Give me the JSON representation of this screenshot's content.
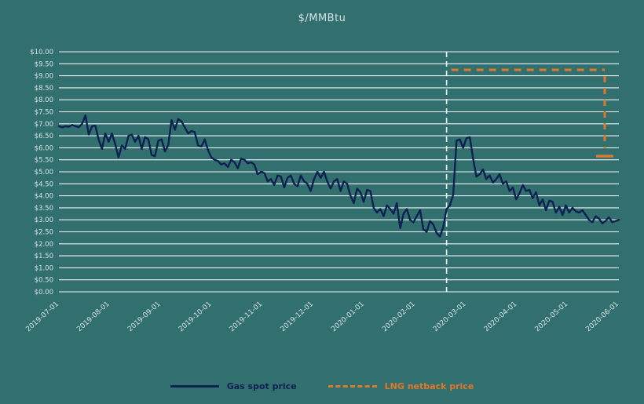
{
  "colors": {
    "background": "#327070",
    "grid": "#eef4f4",
    "text": "#d7e2e2",
    "event_line": "#f2f6f6",
    "spot_line": "#0d2150",
    "netback_line": "#e0782a"
  },
  "chart_data": {
    "type": "line",
    "title": "$/MMBtu",
    "xlabel": "",
    "ylabel": "",
    "ylim": [
      0,
      10
    ],
    "ytick_step": 0.5,
    "ytick_prefix": "$",
    "grid": "horizontal",
    "legend_position": "bottom-center",
    "categories": [
      "2019-07-01",
      "2019-08-01",
      "2019-09-01",
      "2019-10-01",
      "2019-11-01",
      "2019-12-01",
      "2020-01-01",
      "2020-02-01",
      "2020-03-01",
      "2020-04-01",
      "2020-05-01",
      "2020-06-01"
    ],
    "event_index": 117,
    "event_line_note": "vertical white dashed marker near 2020-03",
    "series": [
      {
        "name": "Gas spot price",
        "type": "line",
        "color": "#0d2150",
        "values": [
          6.9,
          6.85,
          6.9,
          6.88,
          6.95,
          6.9,
          6.86,
          7.0,
          7.35,
          6.55,
          6.9,
          6.92,
          6.35,
          5.95,
          6.6,
          6.25,
          6.6,
          6.15,
          5.6,
          6.1,
          5.95,
          6.5,
          6.55,
          6.25,
          6.5,
          5.95,
          6.45,
          6.35,
          5.7,
          5.65,
          6.3,
          6.35,
          5.85,
          6.1,
          7.15,
          6.75,
          7.2,
          7.1,
          6.85,
          6.6,
          6.7,
          6.65,
          6.1,
          6.05,
          6.35,
          5.9,
          5.6,
          5.5,
          5.45,
          5.3,
          5.35,
          5.2,
          5.5,
          5.4,
          5.15,
          5.55,
          5.5,
          5.35,
          5.4,
          5.3,
          4.9,
          5.0,
          4.95,
          4.6,
          4.7,
          4.45,
          4.85,
          4.8,
          4.35,
          4.75,
          4.85,
          4.5,
          4.4,
          4.85,
          4.6,
          4.5,
          4.2,
          4.7,
          5.0,
          4.75,
          5.0,
          4.6,
          4.3,
          4.6,
          4.7,
          4.2,
          4.6,
          4.5,
          4.0,
          3.7,
          4.3,
          4.15,
          3.75,
          4.25,
          4.2,
          3.5,
          3.3,
          3.45,
          3.15,
          3.6,
          3.45,
          3.25,
          3.7,
          2.65,
          3.25,
          3.45,
          3.0,
          2.9,
          3.15,
          3.4,
          2.6,
          2.5,
          2.95,
          2.8,
          2.45,
          2.3,
          2.7,
          3.45,
          3.6,
          4.05,
          6.3,
          6.35,
          6.0,
          6.4,
          6.45,
          5.55,
          4.8,
          4.9,
          5.1,
          4.7,
          4.85,
          4.55,
          4.7,
          4.9,
          4.5,
          4.6,
          4.2,
          4.35,
          3.85,
          4.1,
          4.45,
          4.2,
          4.25,
          3.9,
          4.15,
          3.6,
          3.85,
          3.4,
          3.8,
          3.75,
          3.3,
          3.55,
          3.2,
          3.6,
          3.3,
          3.5,
          3.35,
          3.3,
          3.4,
          3.2,
          3.0,
          2.9,
          3.15,
          3.05,
          2.85,
          2.95,
          3.1,
          2.9,
          2.95,
          3.0
        ]
      },
      {
        "name": "LNG netback price",
        "type": "dashed-step",
        "color": "#e0782a",
        "level": 9.25,
        "end_level": 5.65
      }
    ]
  }
}
